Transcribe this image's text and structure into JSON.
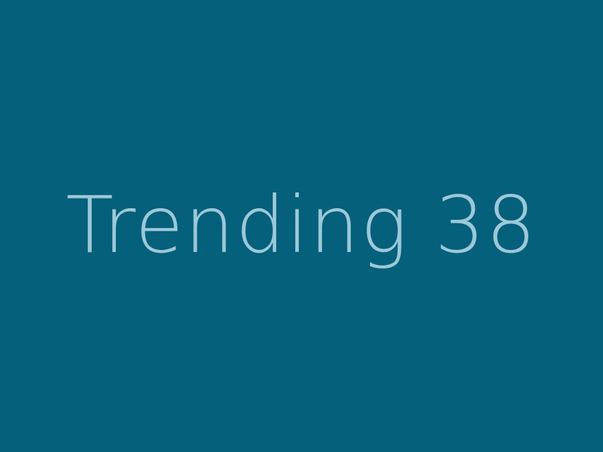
{
  "image": {
    "label": "Trending 38",
    "background_color": "#05607c",
    "text_color": "#9cc8d8"
  }
}
